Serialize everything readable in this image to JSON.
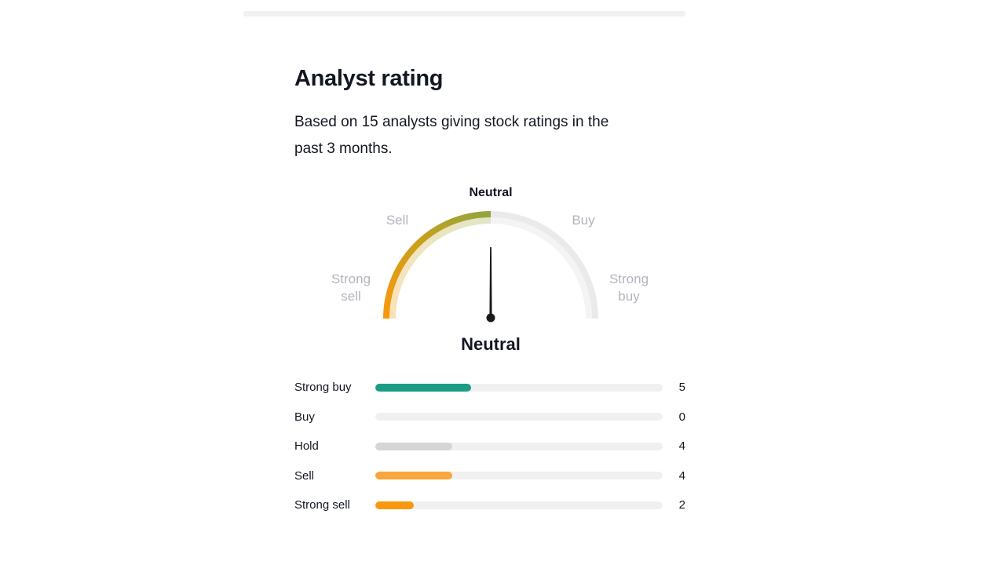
{
  "header": {
    "title": "Analyst rating",
    "subtitle_lines": [
      "Based on 15 analysts giving stock ratings in the",
      "past 3 months."
    ]
  },
  "gauge": {
    "labels": {
      "top": "Neutral",
      "upper_left": "Sell",
      "upper_right": "Buy",
      "left": "Strong sell",
      "right": "Strong buy"
    },
    "current_rating": "Neutral",
    "colors": {
      "arc_gradient": {
        "start": "#F8980F",
        "mid": "#C9A01B",
        "end": "#93A53C"
      },
      "arc_gradient_faded": {
        "start": "#FBE2B8",
        "mid": "#EFE4BF",
        "end": "#E1E5C6"
      },
      "track": "#EAEAEA",
      "track_inner": "#F4F4F4",
      "needle": "#1A1A1A",
      "label_gray": "#B2B5BE",
      "text_dark": "#131722"
    }
  },
  "ratings": {
    "total_analysts": 15,
    "track_color": "#F0F0F0",
    "rows": [
      {
        "label": "Strong buy",
        "value": 5,
        "color": "#1B9C85"
      },
      {
        "label": "Buy",
        "value": 0,
        "color": null
      },
      {
        "label": "Hold",
        "value": 4,
        "color": "#D4D5D7"
      },
      {
        "label": "Sell",
        "value": 4,
        "color": "#FAA63C"
      },
      {
        "label": "Strong sell",
        "value": 2,
        "color": "#F8980F"
      }
    ]
  },
  "chart_data": [
    {
      "type": "gauge",
      "title": "Analyst rating",
      "subtitle": "Based on 15 analysts giving stock ratings in the past 3 months.",
      "scale": [
        "Strong sell",
        "Sell",
        "Neutral",
        "Buy",
        "Strong buy"
      ],
      "value": "Neutral",
      "needle_points_to": "Neutral",
      "colored_arc": "left half (Strong sell to Neutral) gradient orange #F8980F to olive #93A53C; right half light gray track"
    },
    {
      "type": "bar",
      "orientation": "horizontal",
      "categories": [
        "Strong buy",
        "Buy",
        "Hold",
        "Sell",
        "Strong sell"
      ],
      "values": [
        5,
        0,
        4,
        4,
        2
      ],
      "total": 15,
      "xlim": [
        0,
        15
      ],
      "bar_colors": [
        "#1B9C85",
        null,
        "#D4D5D7",
        "#FAA63C",
        "#F8980F"
      ]
    }
  ]
}
